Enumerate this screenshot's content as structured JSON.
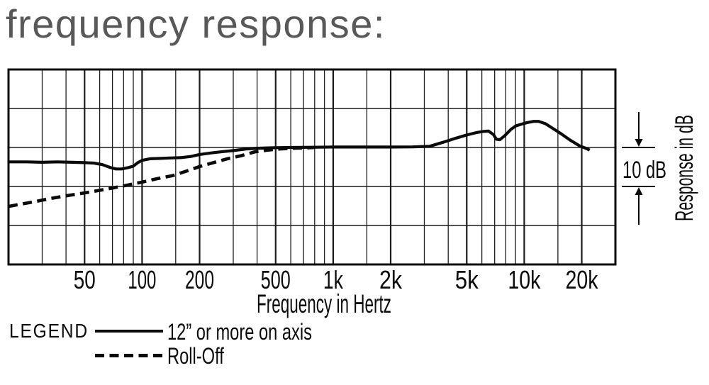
{
  "title": "frequency response:",
  "colors": {
    "ink": "#0b0b0b",
    "grid": "#1c1c1c",
    "title_gray": "#56585a"
  },
  "legend": {
    "heading": "LEGEND",
    "items": [
      {
        "label": "12” or more on axis",
        "style": "solid"
      },
      {
        "label": "Roll-Off",
        "style": "dashed"
      }
    ]
  },
  "chart_data": {
    "type": "line",
    "title": "frequency response:",
    "xlabel": "Frequency in Hertz",
    "ylabel": "Response in dB",
    "scale_annotation": "10 dB",
    "x_axis": {
      "scale": "log",
      "min": 20,
      "max": 30000,
      "gridlines": [
        20,
        30,
        40,
        50,
        60,
        70,
        80,
        90,
        100,
        150,
        200,
        300,
        400,
        500,
        600,
        700,
        800,
        900,
        1000,
        1500,
        2000,
        3000,
        4000,
        5000,
        6000,
        7000,
        8000,
        9000,
        10000,
        15000,
        20000,
        30000
      ],
      "ticks": [
        {
          "f": 50,
          "label": "50"
        },
        {
          "f": 100,
          "label": "100"
        },
        {
          "f": 200,
          "label": "200"
        },
        {
          "f": 500,
          "label": "500"
        },
        {
          "f": 1000,
          "label": "1k"
        },
        {
          "f": 2000,
          "label": "2k"
        },
        {
          "f": 5000,
          "label": "5k"
        },
        {
          "f": 10000,
          "label": "10k"
        },
        {
          "f": 20000,
          "label": "20k"
        }
      ]
    },
    "y_axis": {
      "min_db": -30,
      "max_db": 20,
      "grid_step_db": 10,
      "reference_db": 0
    },
    "series": [
      {
        "name": "12” or more on axis",
        "style": "solid",
        "points": [
          [
            20,
            -3.7
          ],
          [
            25,
            -3.7
          ],
          [
            30,
            -3.8
          ],
          [
            36,
            -3.7
          ],
          [
            43,
            -3.8
          ],
          [
            50,
            -3.9
          ],
          [
            56,
            -4.0
          ],
          [
            62,
            -4.4
          ],
          [
            68,
            -5.1
          ],
          [
            73,
            -5.5
          ],
          [
            78,
            -5.5
          ],
          [
            84,
            -5.2
          ],
          [
            90,
            -4.8
          ],
          [
            95,
            -3.9
          ],
          [
            100,
            -3.3
          ],
          [
            110,
            -2.9
          ],
          [
            125,
            -2.8
          ],
          [
            140,
            -2.7
          ],
          [
            160,
            -2.6
          ],
          [
            180,
            -2.3
          ],
          [
            200,
            -1.8
          ],
          [
            230,
            -1.4
          ],
          [
            260,
            -1.1
          ],
          [
            300,
            -0.8
          ],
          [
            350,
            -0.4
          ],
          [
            400,
            -0.2
          ],
          [
            500,
            -0.05
          ],
          [
            600,
            0
          ],
          [
            800,
            0.05
          ],
          [
            1000,
            0.1
          ],
          [
            1300,
            0.1
          ],
          [
            1600,
            0.1
          ],
          [
            2000,
            0.1
          ],
          [
            2600,
            0.15
          ],
          [
            3200,
            0.3
          ],
          [
            3800,
            1.4
          ],
          [
            4400,
            2.4
          ],
          [
            5000,
            3.2
          ],
          [
            5600,
            3.8
          ],
          [
            6100,
            4.1
          ],
          [
            6500,
            4.2
          ],
          [
            6900,
            3.3
          ],
          [
            7150,
            2.1
          ],
          [
            7450,
            2.0
          ],
          [
            7900,
            3.0
          ],
          [
            8500,
            4.6
          ],
          [
            9000,
            5.5
          ],
          [
            9700,
            6.0
          ],
          [
            10400,
            6.4
          ],
          [
            11200,
            6.7
          ],
          [
            11900,
            6.7
          ],
          [
            12900,
            6.1
          ],
          [
            14200,
            4.8
          ],
          [
            15500,
            3.6
          ],
          [
            17500,
            1.8
          ],
          [
            19500,
            0.4
          ],
          [
            21000,
            -0.2
          ],
          [
            22000,
            -0.7
          ]
        ]
      },
      {
        "name": "Roll-Off",
        "style": "dashed",
        "points": [
          [
            20,
            -15.1
          ],
          [
            24,
            -14.4
          ],
          [
            28,
            -13.8
          ],
          [
            33,
            -13.1
          ],
          [
            40,
            -12.4
          ],
          [
            48,
            -11.8
          ],
          [
            58,
            -11.1
          ],
          [
            70,
            -10.4
          ],
          [
            85,
            -9.6
          ],
          [
            100,
            -8.9
          ],
          [
            120,
            -8.0
          ],
          [
            145,
            -7.2
          ],
          [
            175,
            -5.9
          ],
          [
            200,
            -4.9
          ],
          [
            240,
            -3.8
          ],
          [
            280,
            -2.9
          ],
          [
            330,
            -2.1
          ],
          [
            390,
            -1.1
          ],
          [
            450,
            -0.7
          ],
          [
            520,
            -0.4
          ],
          [
            600,
            -0.2
          ],
          [
            700,
            -0.1
          ],
          [
            800,
            0
          ]
        ]
      }
    ]
  }
}
